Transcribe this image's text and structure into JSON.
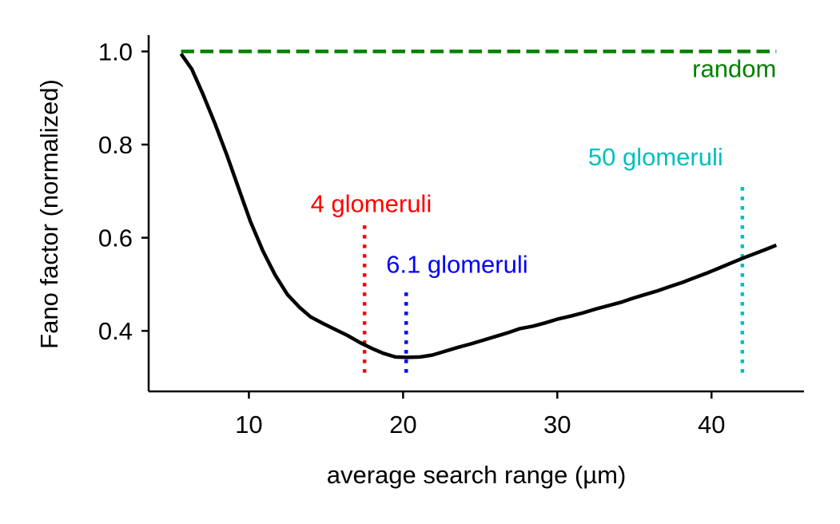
{
  "chart_data": {
    "type": "line",
    "title": "",
    "xlabel": "average search range (µm)",
    "ylabel": "Fano factor (normalized)",
    "xlim": [
      3.5,
      46
    ],
    "ylim": [
      0.27,
      1.035
    ],
    "xticks": [
      10,
      20,
      30,
      40
    ],
    "yticks": [
      0.4,
      0.6,
      0.8,
      1.0
    ],
    "xtick_labels": [
      "10",
      "20",
      "30",
      "40"
    ],
    "ytick_labels": [
      "0.4",
      "0.6",
      "0.8",
      "1.0"
    ],
    "grid": false,
    "series": [
      {
        "color": "#000000",
        "style": "solid",
        "x": [
          5.6,
          6.3,
          7.0,
          7.8,
          8.6,
          9.4,
          10.1,
          10.9,
          11.7,
          12.5,
          13.3,
          14.0,
          14.8,
          15.6,
          16.4,
          17.2,
          18.0,
          18.7,
          19.5,
          20.3,
          21.1,
          21.9,
          22.7,
          23.5,
          24.4,
          25.2,
          26.0,
          26.8,
          27.6,
          28.4,
          29.2,
          30.0,
          30.9,
          31.7,
          32.5,
          33.3,
          34.1,
          34.9,
          35.7,
          36.5,
          37.3,
          38.1,
          38.9,
          39.7,
          40.5,
          41.3,
          42.1,
          42.9,
          43.6,
          44.2
        ],
        "y": [
          0.995,
          0.962,
          0.91,
          0.845,
          0.775,
          0.7,
          0.635,
          0.572,
          0.52,
          0.478,
          0.45,
          0.43,
          0.416,
          0.403,
          0.39,
          0.375,
          0.362,
          0.352,
          0.344,
          0.343,
          0.344,
          0.348,
          0.356,
          0.364,
          0.372,
          0.38,
          0.388,
          0.396,
          0.405,
          0.41,
          0.417,
          0.425,
          0.432,
          0.439,
          0.447,
          0.454,
          0.461,
          0.47,
          0.478,
          0.486,
          0.495,
          0.504,
          0.514,
          0.524,
          0.535,
          0.546,
          0.557,
          0.567,
          0.576,
          0.584
        ]
      },
      {
        "name": "random",
        "color": "#008000",
        "style": "dashed",
        "x": [
          5.6,
          44.2
        ],
        "y": [
          1.0,
          1.0
        ]
      }
    ],
    "vlines": [
      {
        "x": 17.5,
        "ymin": 0.31,
        "ymax": 0.63,
        "color": "#ff0000",
        "label": "4 glomeruli"
      },
      {
        "x": 20.2,
        "ymin": 0.31,
        "ymax": 0.49,
        "color": "#0000ff",
        "label": "6.1 glomeruli"
      },
      {
        "x": 42.0,
        "ymin": 0.31,
        "ymax": 0.72,
        "color": "#00bfbf",
        "label": "50 glomeruli"
      }
    ],
    "annotations": [
      {
        "text": "random",
        "x": 44.2,
        "y": 0.945,
        "anchor": "end",
        "color": "#008000"
      },
      {
        "text": "4 glomeruli",
        "x": 14.0,
        "y": 0.655,
        "anchor": "start",
        "color": "#ff0000"
      },
      {
        "text": "6.1 glomeruli",
        "x": 18.9,
        "y": 0.525,
        "anchor": "start",
        "color": "#0000ff"
      },
      {
        "text": "50 glomeruli",
        "x": 32.0,
        "y": 0.755,
        "anchor": "start",
        "color": "#00bfbf"
      }
    ]
  }
}
